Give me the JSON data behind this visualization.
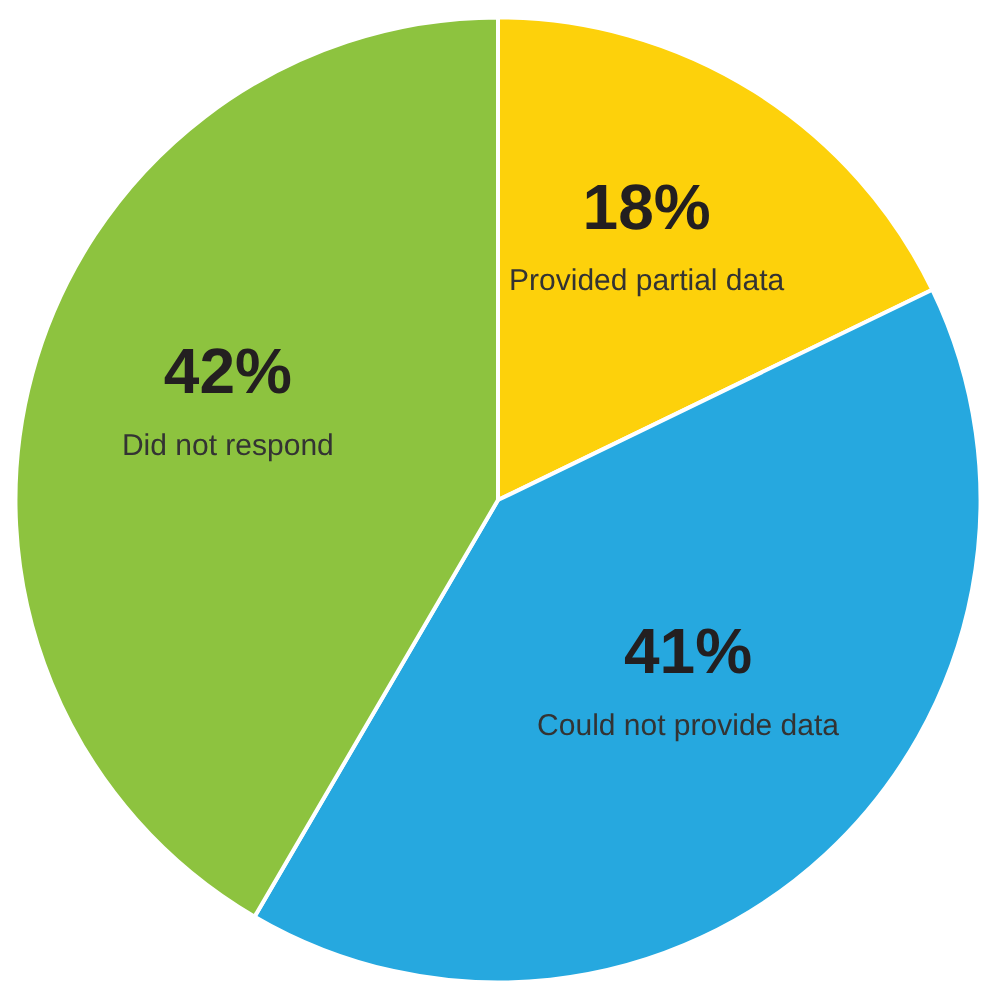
{
  "chart_data": {
    "type": "pie",
    "categories": [
      "Provided partial data",
      "Could not provide data",
      "Did not respond"
    ],
    "values": [
      18,
      41,
      42
    ],
    "colors": [
      "#fdd10b",
      "#26a8df",
      "#8dc33f"
    ],
    "value_labels": [
      "18%",
      "41%",
      "42%"
    ]
  }
}
